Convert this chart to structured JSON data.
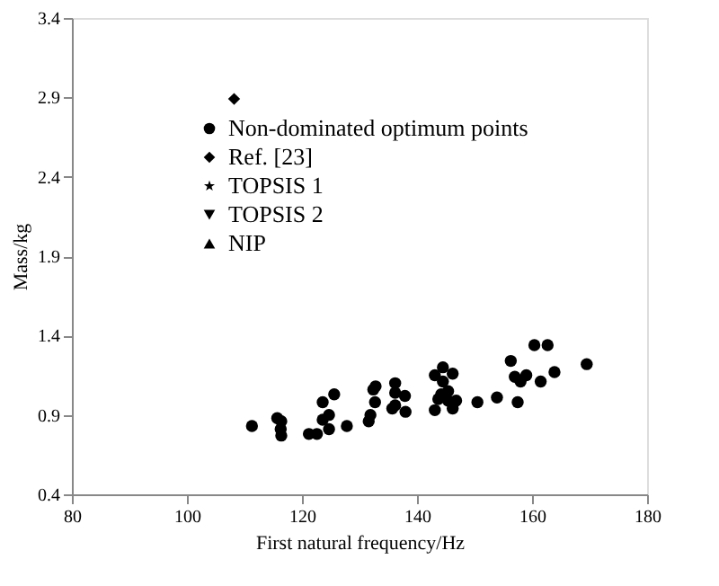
{
  "chart_data": {
    "type": "scatter",
    "xlabel": "First natural frequency/Hz",
    "ylabel": "Mass/kg",
    "xlim": [
      80,
      180
    ],
    "xticks": [
      80,
      100,
      120,
      140,
      160,
      180
    ],
    "ylim": [
      0.4,
      3.4
    ],
    "yticks": [
      0.4,
      0.9,
      1.4,
      1.9,
      2.4,
      2.9,
      3.4
    ],
    "grid": false,
    "legend": "top left",
    "series": [
      {
        "name": "Non-dominated optimum points",
        "color": "#000000",
        "marker": "circle",
        "x": [
          111.3,
          115.7,
          116.4,
          116.3,
          116.4,
          121.2,
          122.6,
          123.6,
          123.6,
          124.7,
          124.7,
          125.6,
          127.8,
          131.6,
          131.9,
          132.4,
          132.8,
          132.7,
          135.7,
          136.2,
          136.2,
          136.2,
          137.9,
          138.0,
          143.1,
          143.1,
          143.7,
          144.2,
          144.5,
          144.5,
          145.4,
          146.2,
          146.2,
          146.8,
          145.4,
          150.5,
          153.9,
          156.3,
          157.0,
          157.5,
          158.0,
          159.0,
          160.4,
          161.5,
          162.7,
          163.9,
          169.5
        ],
        "values": [
          0.83,
          0.88,
          0.86,
          0.81,
          0.77,
          0.78,
          0.78,
          0.87,
          0.98,
          0.9,
          0.81,
          1.03,
          0.83,
          0.86,
          0.9,
          1.06,
          1.08,
          0.98,
          0.94,
          1.1,
          1.04,
          0.96,
          1.02,
          0.92,
          0.93,
          1.15,
          1.0,
          1.03,
          1.2,
          1.11,
          1.05,
          1.16,
          0.94,
          0.99,
          0.99,
          0.98,
          1.01,
          1.24,
          1.14,
          0.98,
          1.11,
          1.15,
          1.34,
          1.11,
          1.34,
          1.17,
          1.22
        ]
      },
      {
        "name": "Ref. [23]",
        "color": "#000000",
        "marker": "diamond",
        "x": [
          108.2
        ],
        "values": [
          2.89
        ]
      },
      {
        "name": "TOPSIS 1",
        "color": "#000000",
        "marker": "star"
      },
      {
        "name": "TOPSIS 2",
        "color": "#000000",
        "marker": "triangle-down"
      },
      {
        "name": "NIP",
        "color": "#000000",
        "marker": "triangle-up"
      }
    ]
  }
}
